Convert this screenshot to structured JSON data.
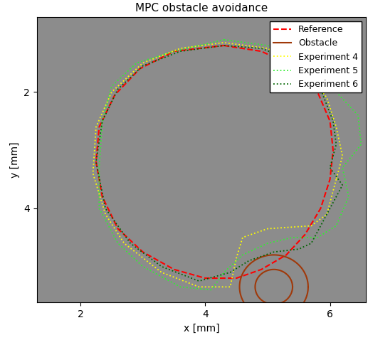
{
  "chart_data": {
    "type": "line",
    "title": "MPC obstacle avoidance",
    "x_label": "x [mm]",
    "y_label": "y [mm]",
    "xlim": [
      1.3,
      6.58
    ],
    "ylim": [
      5.62,
      0.71
    ],
    "xticks": [
      2,
      4,
      6
    ],
    "yticks": [
      2,
      4
    ],
    "grid": false,
    "legend": "upper right",
    "series": [
      {
        "name": "Reference",
        "color": "#ff0000",
        "line_style": "dashed",
        "x": [
          4.3,
          4.9,
          5.4,
          5.8,
          6.0,
          6.05,
          6.0,
          5.85,
          5.6,
          5.3,
          4.9,
          4.5,
          4.0,
          3.5,
          3.0,
          2.6,
          2.35,
          2.25,
          2.3,
          2.55,
          2.95,
          3.5,
          4.3
        ],
        "values": [
          1.2,
          1.3,
          1.55,
          2.0,
          2.5,
          3.0,
          3.5,
          4.0,
          4.45,
          4.8,
          5.05,
          5.2,
          5.2,
          5.05,
          4.75,
          4.35,
          3.8,
          3.2,
          2.6,
          2.05,
          1.6,
          1.3,
          1.2
        ]
      },
      {
        "name": "Obstacle",
        "type": "circle",
        "color": "#a0390a",
        "line_style": "solid",
        "center": [
          5.1,
          5.35
        ],
        "radii": [
          0.55,
          0.3
        ]
      },
      {
        "name": "Experiment 4",
        "color": "#ffff00",
        "line_style": "dotted",
        "x": [
          6.1,
          5.95,
          5.7,
          5.0,
          4.6,
          4.5,
          4.4,
          3.9,
          3.3,
          2.7,
          2.4,
          2.2,
          2.25,
          2.5,
          3.0,
          3.6,
          4.3,
          5.0,
          5.6,
          5.95,
          6.1,
          6.2,
          6.1
        ],
        "values": [
          3.5,
          4.1,
          4.3,
          4.35,
          4.5,
          4.85,
          5.35,
          5.35,
          5.1,
          4.6,
          4.1,
          3.4,
          2.6,
          2.0,
          1.5,
          1.25,
          1.15,
          1.25,
          1.6,
          2.1,
          2.6,
          3.1,
          3.5
        ]
      },
      {
        "name": "Experiment 5",
        "color": "#33ee33",
        "line_style": "dotted",
        "x": [
          4.3,
          5.0,
          5.7,
          6.1,
          6.45,
          6.5,
          6.2,
          6.3,
          6.1,
          5.8,
          5.4,
          5.0,
          4.6,
          4.3,
          4.1,
          3.6,
          3.0,
          2.6,
          2.3,
          2.3,
          2.35,
          2.5,
          2.9,
          3.5,
          4.3
        ],
        "values": [
          1.1,
          1.2,
          1.5,
          2.0,
          2.4,
          2.9,
          3.3,
          3.8,
          4.3,
          4.5,
          4.5,
          4.6,
          4.8,
          5.1,
          5.4,
          5.35,
          5.0,
          4.6,
          4.0,
          3.3,
          2.5,
          1.9,
          1.5,
          1.3,
          1.1
        ]
      },
      {
        "name": "Experiment 6",
        "color": "#006400",
        "line_style": "dotted",
        "x": [
          6.0,
          6.2,
          5.9,
          5.7,
          5.5,
          5.1,
          4.7,
          4.4,
          3.9,
          3.3,
          2.8,
          2.4,
          2.25,
          2.35,
          2.6,
          3.0,
          3.6,
          4.3,
          4.9,
          5.5,
          5.85,
          6.05,
          6.1,
          6.0
        ],
        "values": [
          3.3,
          3.6,
          4.2,
          4.6,
          4.7,
          4.75,
          4.9,
          5.1,
          5.25,
          5.0,
          4.6,
          4.0,
          3.2,
          2.5,
          1.95,
          1.55,
          1.3,
          1.2,
          1.25,
          1.5,
          1.95,
          2.5,
          2.9,
          3.3
        ]
      }
    ]
  }
}
